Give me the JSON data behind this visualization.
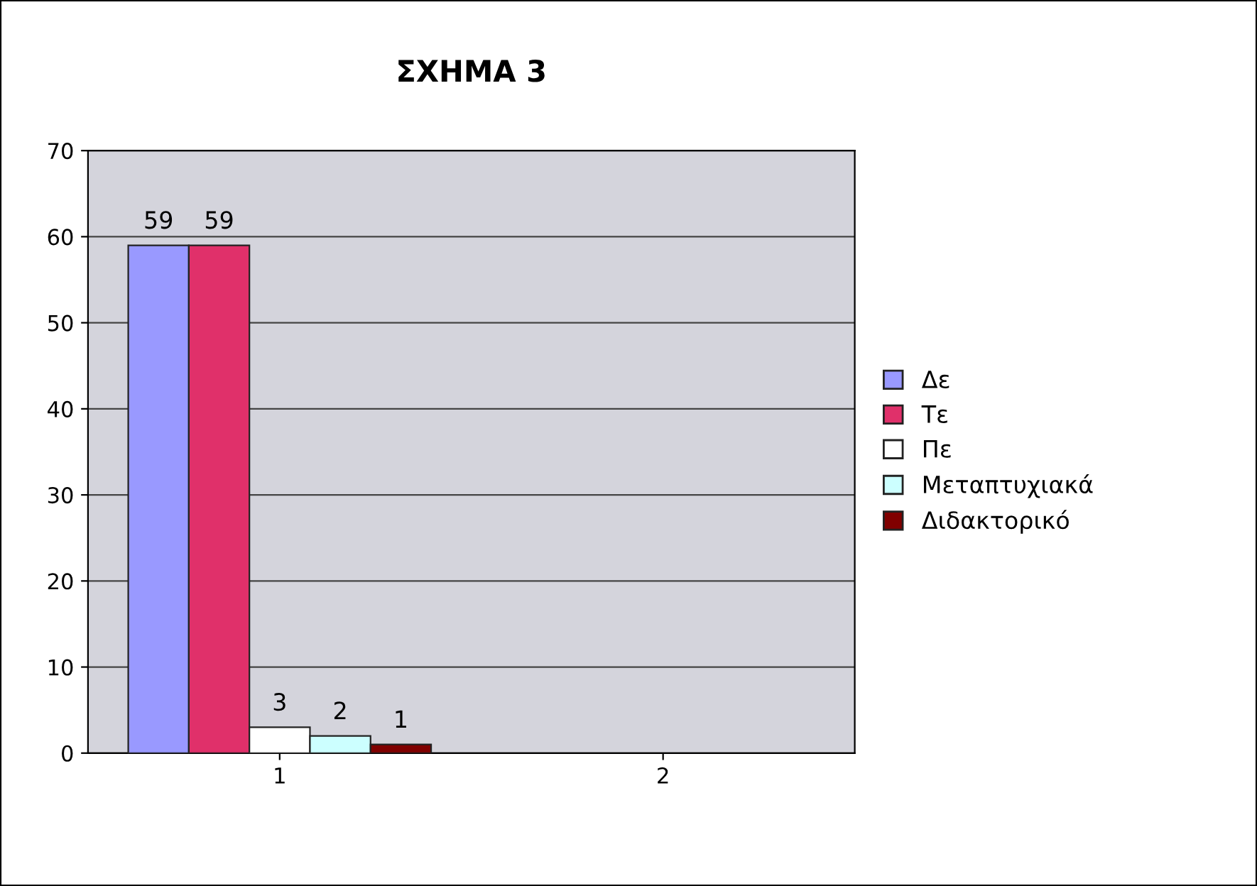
{
  "chart_data": {
    "type": "bar",
    "title": "ΣΧΗΜΑ 3",
    "categories": [
      "1",
      "2"
    ],
    "series": [
      {
        "name": "Δε",
        "color": "#9999ff",
        "values": [
          59,
          null
        ]
      },
      {
        "name": "Τε",
        "color": "#e0306a",
        "values": [
          59,
          null
        ]
      },
      {
        "name": "Πε",
        "color": "#ffffff",
        "values": [
          3,
          null
        ]
      },
      {
        "name": "Μεταπτυχιακά",
        "color": "#ccffff",
        "values": [
          2,
          null
        ]
      },
      {
        "name": "Διδακτορικό",
        "color": "#800000",
        "values": [
          1,
          null
        ]
      }
    ],
    "ylim": [
      0,
      70
    ],
    "yticks": [
      0,
      10,
      20,
      30,
      40,
      50,
      60,
      70
    ],
    "grid": "y",
    "legend": "right",
    "data_labels": true
  }
}
